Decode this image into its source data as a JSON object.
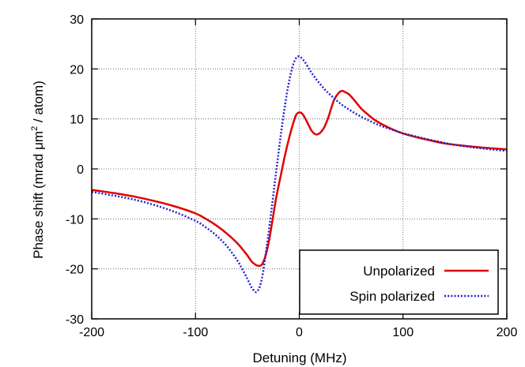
{
  "chart_data": {
    "type": "line",
    "title": "",
    "xlabel": "Detuning (MHz)",
    "ylabel": {
      "main": "Phase shift (mrad μm",
      "sup": "2",
      "tail": " / atom)"
    },
    "xlim": [
      -200,
      200
    ],
    "ylim": [
      -30,
      30
    ],
    "xticks": [
      -200,
      -100,
      0,
      100,
      200
    ],
    "yticks": [
      -30,
      -20,
      -10,
      0,
      10,
      20,
      30
    ],
    "xtick_labels": [
      "-200",
      "-100",
      "0",
      "100",
      "200"
    ],
    "ytick_labels": [
      "-30",
      "-20",
      "-10",
      "0",
      "10",
      "20",
      "30"
    ],
    "grid": true,
    "legend_position": "bottom-right",
    "series": [
      {
        "name": "Unpolarized",
        "color": "#e00000",
        "style": "solid",
        "x": [
          -200,
          -180,
          -160,
          -140,
          -120,
          -100,
          -90,
          -80,
          -70,
          -60,
          -55,
          -50,
          -46,
          -42,
          -39,
          -37,
          -35,
          -32,
          -29,
          -26,
          -22,
          -18,
          -14,
          -10,
          -6,
          -3,
          0,
          3,
          6,
          9,
          12,
          16,
          20,
          24,
          28,
          31,
          34,
          38,
          41,
          44,
          48,
          52,
          56,
          60,
          66,
          72,
          80,
          90,
          100,
          110,
          120,
          140,
          160,
          180,
          200
        ],
        "y": [
          -4.2,
          -4.8,
          -5.5,
          -6.4,
          -7.5,
          -8.9,
          -10.0,
          -11.3,
          -12.9,
          -14.8,
          -16.0,
          -17.3,
          -18.5,
          -19.2,
          -19.4,
          -19.3,
          -18.8,
          -17.0,
          -14.2,
          -10.5,
          -5.5,
          -1.5,
          2.5,
          6.0,
          9.0,
          10.8,
          11.3,
          11.0,
          10.0,
          8.8,
          7.6,
          6.9,
          7.2,
          8.3,
          10.3,
          12.3,
          14.0,
          15.2,
          15.6,
          15.4,
          14.9,
          14.0,
          13.0,
          12.0,
          10.9,
          9.9,
          8.9,
          7.9,
          7.1,
          6.5,
          6.0,
          5.1,
          4.6,
          4.2,
          3.9
        ]
      },
      {
        "name": "Spin polarized",
        "color": "#2222cc",
        "style": "dotted",
        "x": [
          -200,
          -180,
          -160,
          -140,
          -120,
          -100,
          -90,
          -80,
          -70,
          -60,
          -55,
          -50,
          -46,
          -43,
          -41,
          -39,
          -37,
          -35,
          -33,
          -30,
          -27,
          -24,
          -21,
          -18,
          -15,
          -12,
          -9,
          -6,
          -3,
          -1,
          1,
          3,
          6,
          10,
          15,
          20,
          25,
          30,
          40,
          50,
          60,
          70,
          80,
          90,
          100,
          110,
          120,
          140,
          160,
          180,
          200
        ],
        "y": [
          -4.6,
          -5.3,
          -6.1,
          -7.2,
          -8.6,
          -10.4,
          -11.7,
          -13.3,
          -15.4,
          -18.2,
          -20.0,
          -22.0,
          -23.7,
          -24.5,
          -24.6,
          -24.0,
          -22.8,
          -20.8,
          -18.0,
          -13.5,
          -8.6,
          -3.5,
          1.5,
          6.5,
          11.0,
          15.0,
          18.3,
          20.8,
          22.2,
          22.5,
          22.4,
          22.0,
          21.2,
          19.8,
          18.3,
          17.0,
          15.8,
          14.8,
          13.0,
          11.6,
          10.4,
          9.4,
          8.5,
          7.8,
          7.1,
          6.6,
          6.1,
          5.2,
          4.5,
          4.0,
          3.6
        ]
      }
    ]
  }
}
